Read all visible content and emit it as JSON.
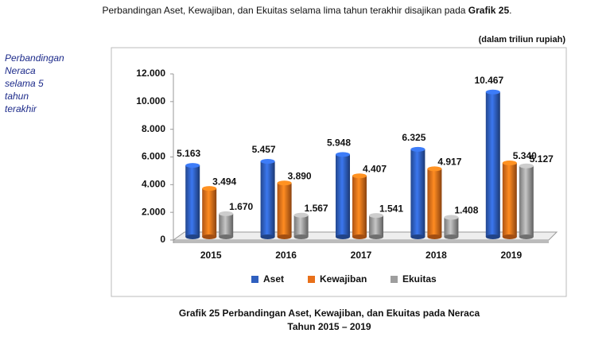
{
  "intro": {
    "text": "Perbandingan Aset, Kewajiban, dan Ekuitas selama lima tahun terakhir disajikan pada",
    "ref": "Grafik 25",
    "end": "."
  },
  "sidebar": [
    "Perbandingan",
    "Neraca",
    "selama 5",
    "tahun",
    "terakhir"
  ],
  "caption": [
    "Grafik 25 Perbandingan Aset, Kewajiban, dan Ekuitas pada Neraca",
    "Tahun 2015 – 2019"
  ],
  "chart_data": {
    "type": "bar",
    "unit": "(dalam triliun rupiah)",
    "categories": [
      "2015",
      "2016",
      "2017",
      "2018",
      "2019"
    ],
    "series": [
      {
        "name": "Aset",
        "color": "#2f5fbf",
        "values": [
          5163,
          5457,
          5948,
          6325,
          10467
        ],
        "value_labels": [
          "5.163",
          "5.457",
          "5.948",
          "6.325",
          "10.467"
        ]
      },
      {
        "name": "Kewajiban",
        "color": "#e8701a",
        "values": [
          3494,
          3890,
          4407,
          4917,
          5340
        ],
        "value_labels": [
          "3.494",
          "3.890",
          "4.407",
          "4.917",
          "5.340"
        ]
      },
      {
        "name": "Ekuitas",
        "color": "#9e9e9e",
        "values": [
          1670,
          1567,
          1541,
          1408,
          5127
        ],
        "value_labels": [
          "1.670",
          "1.567",
          "1.541",
          "1.408",
          "5.127"
        ]
      }
    ],
    "ylim": [
      0,
      12000
    ],
    "yticks": [
      {
        "value": 0,
        "label": "0"
      },
      {
        "value": 2000,
        "label": "2.000"
      },
      {
        "value": 4000,
        "label": "4.000"
      },
      {
        "value": 6000,
        "label": "6.000"
      },
      {
        "value": 8000,
        "label": "8.000"
      },
      {
        "value": 10000,
        "label": "10.000"
      },
      {
        "value": 12000,
        "label": "12.000"
      }
    ],
    "legend": "bottom"
  }
}
